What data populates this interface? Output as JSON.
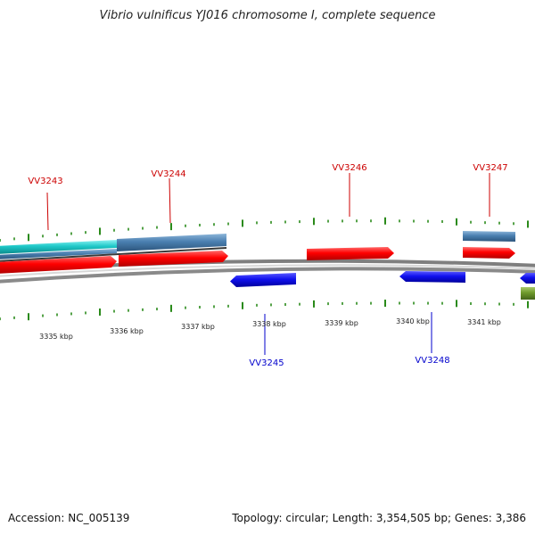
{
  "title": "Vibrio vulnificus YJ016 chromosome I, complete sequence",
  "footer": {
    "accession": "Accession: NC_005139",
    "summary": "Topology: circular; Length: 3,354,505 bp; Genes: 3,386"
  },
  "colors": {
    "forward_cds": "#ff0000",
    "reverse_cds": "#1010ee",
    "gene": "#4a7fb0",
    "gene_cyan": "#1ec8c8",
    "olive": "#6f9a2c",
    "forward_tick": "#2a8a1a",
    "label_forward": "#cc0000",
    "label_reverse": "#0000cc",
    "backbone": "#8a8a8a"
  },
  "scale_labels": [
    "3335 kbp",
    "3336 kbp",
    "3337 kbp",
    "3338 kbp",
    "3339 kbp",
    "3340 kbp",
    "3341 kbp"
  ],
  "gene_labels": {
    "forward": [
      "VV3243",
      "VV3244",
      "VV3246",
      "VV3247"
    ],
    "reverse": [
      "VV3245",
      "VV3248"
    ]
  }
}
